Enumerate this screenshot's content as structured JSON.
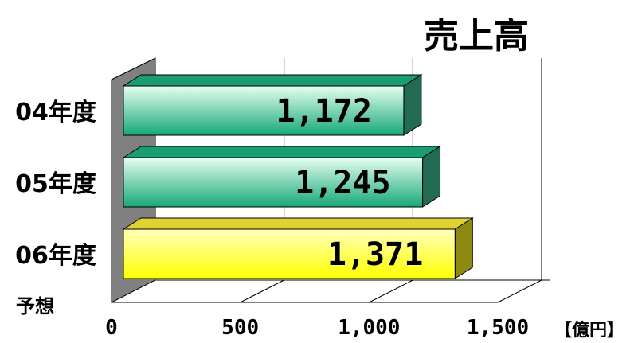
{
  "chart_data": {
    "type": "bar",
    "orientation": "horizontal",
    "title": "売上高",
    "unit": "【億円】",
    "categories": [
      "04年度",
      "05年度",
      "06年度"
    ],
    "category_notes": [
      "",
      "",
      "予想"
    ],
    "values": [
      1172,
      1245,
      1371
    ],
    "value_labels": [
      "1,172",
      "1,245",
      "1,371"
    ],
    "xlim": [
      0,
      1500
    ],
    "x_ticks": [
      "0",
      "500",
      "1,000",
      "1,500"
    ],
    "x_tick_values": [
      0,
      500,
      1000,
      1500
    ],
    "grid": true,
    "style": "3d",
    "colors": {
      "actual_light": "#e6fff0",
      "actual_dark": "#16a878",
      "forecast_light": "#ffffbb",
      "forecast_dark": "#ffff00",
      "wall": "#808080"
    }
  }
}
